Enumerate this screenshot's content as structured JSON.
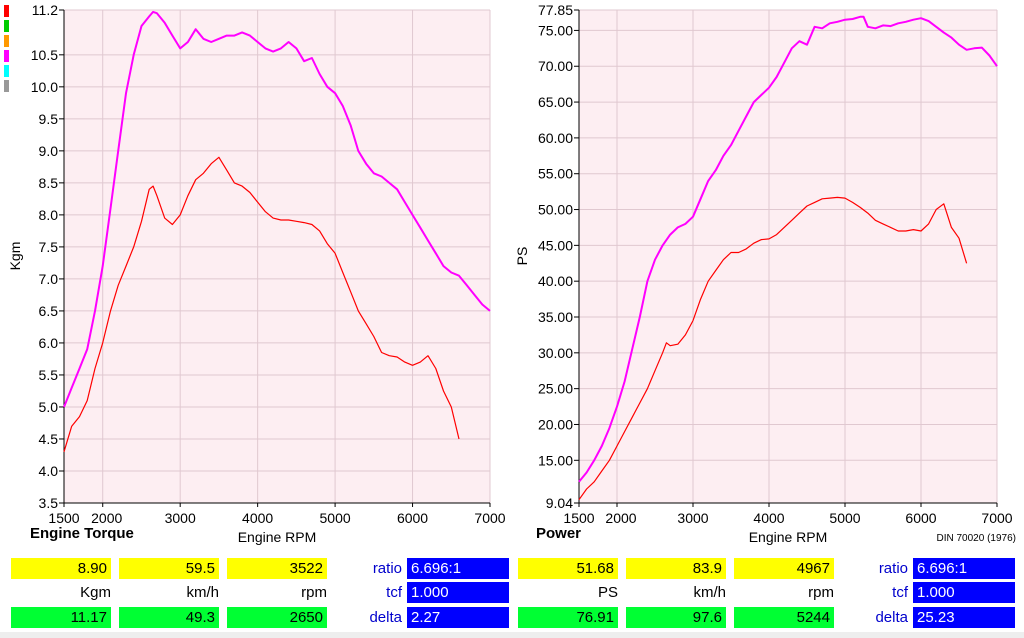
{
  "legend_colors": [
    "#ff0000",
    "#00cc00",
    "#ff9900",
    "#ff00ff",
    "#00ffff",
    "#999999"
  ],
  "chart_data": [
    {
      "type": "line",
      "title": "Engine Torque",
      "xlabel": "Engine RPM",
      "ylabel": "Kgm",
      "xlim": [
        1500,
        7000
      ],
      "ylim": [
        3.5,
        11.2
      ],
      "xticks": [
        1500,
        2000,
        3000,
        4000,
        5000,
        6000,
        7000
      ],
      "yticks": [
        "3.5",
        "4.0",
        "4.5",
        "5.0",
        "5.5",
        "6.0",
        "6.5",
        "7.0",
        "7.5",
        "8.0",
        "8.5",
        "9.0",
        "9.5",
        "10.0",
        "10.5",
        "11.2"
      ],
      "grid": true,
      "series": [
        {
          "color": "#ff00ff",
          "x": [
            1500,
            1600,
            1700,
            1800,
            1900,
            2000,
            2100,
            2200,
            2300,
            2400,
            2500,
            2600,
            2650,
            2700,
            2800,
            2900,
            3000,
            3100,
            3200,
            3300,
            3400,
            3500,
            3600,
            3700,
            3800,
            3900,
            4000,
            4100,
            4200,
            4300,
            4400,
            4500,
            4600,
            4700,
            4800,
            4900,
            5000,
            5100,
            5200,
            5300,
            5400,
            5500,
            5600,
            5700,
            5800,
            5900,
            6000,
            6100,
            6200,
            6300,
            6400,
            6500,
            6600,
            6700,
            6800,
            6900,
            7000
          ],
          "y": [
            5.0,
            5.3,
            5.6,
            5.9,
            6.5,
            7.2,
            8.1,
            9.0,
            9.9,
            10.5,
            10.95,
            11.1,
            11.17,
            11.15,
            11.0,
            10.8,
            10.6,
            10.7,
            10.9,
            10.75,
            10.7,
            10.75,
            10.8,
            10.8,
            10.85,
            10.8,
            10.7,
            10.6,
            10.55,
            10.6,
            10.7,
            10.6,
            10.4,
            10.45,
            10.2,
            10.0,
            9.9,
            9.7,
            9.4,
            9.0,
            8.8,
            8.65,
            8.6,
            8.5,
            8.4,
            8.2,
            8.0,
            7.8,
            7.6,
            7.4,
            7.2,
            7.1,
            7.05,
            6.9,
            6.75,
            6.6,
            6.5
          ]
        },
        {
          "color": "#ff0000",
          "x": [
            1500,
            1600,
            1700,
            1800,
            1900,
            2000,
            2100,
            2200,
            2300,
            2400,
            2500,
            2600,
            2650,
            2700,
            2800,
            2900,
            3000,
            3100,
            3200,
            3300,
            3400,
            3500,
            3600,
            3700,
            3800,
            3900,
            4000,
            4100,
            4200,
            4300,
            4400,
            4500,
            4600,
            4700,
            4800,
            4900,
            5000,
            5100,
            5200,
            5300,
            5400,
            5500,
            5600,
            5700,
            5800,
            5900,
            6000,
            6100,
            6200,
            6300,
            6400,
            6500,
            6600
          ],
          "y": [
            4.3,
            4.7,
            4.85,
            5.1,
            5.6,
            6.0,
            6.5,
            6.9,
            7.2,
            7.5,
            7.9,
            8.4,
            8.45,
            8.3,
            7.95,
            7.85,
            8.0,
            8.3,
            8.55,
            8.65,
            8.8,
            8.9,
            8.7,
            8.5,
            8.45,
            8.35,
            8.2,
            8.05,
            7.95,
            7.92,
            7.92,
            7.9,
            7.88,
            7.85,
            7.75,
            7.55,
            7.4,
            7.1,
            6.8,
            6.5,
            6.3,
            6.1,
            5.85,
            5.8,
            5.78,
            5.7,
            5.65,
            5.7,
            5.8,
            5.6,
            5.25,
            5.0,
            4.5
          ]
        }
      ]
    },
    {
      "type": "line",
      "title": "Power",
      "xlabel": "Engine RPM",
      "ylabel": "PS",
      "note": "DIN 70020 (1976)",
      "xlim": [
        1500,
        7000
      ],
      "ylim": [
        9.04,
        77.85
      ],
      "xticks": [
        1500,
        2000,
        3000,
        4000,
        5000,
        6000,
        7000
      ],
      "yticks": [
        "9.04",
        "15.00",
        "20.00",
        "25.00",
        "30.00",
        "35.00",
        "40.00",
        "45.00",
        "50.00",
        "55.00",
        "60.00",
        "65.00",
        "70.00",
        "75.00",
        "77.85"
      ],
      "grid": true,
      "series": [
        {
          "color": "#ff00ff",
          "x": [
            1500,
            1600,
            1700,
            1800,
            1900,
            2000,
            2100,
            2200,
            2300,
            2400,
            2500,
            2600,
            2700,
            2800,
            2900,
            3000,
            3100,
            3200,
            3300,
            3400,
            3500,
            3600,
            3700,
            3800,
            3900,
            4000,
            4100,
            4200,
            4300,
            4400,
            4500,
            4600,
            4700,
            4800,
            4900,
            5000,
            5100,
            5200,
            5244,
            5300,
            5400,
            5500,
            5600,
            5700,
            5800,
            5900,
            6000,
            6100,
            6200,
            6300,
            6400,
            6500,
            6600,
            6700,
            6800,
            6900,
            7000
          ],
          "y": [
            12.0,
            13.3,
            15.0,
            17.0,
            19.5,
            22.5,
            26.0,
            30.5,
            35.0,
            40.0,
            43.0,
            45.0,
            46.5,
            47.5,
            48.0,
            49.0,
            51.5,
            54.0,
            55.5,
            57.5,
            59.0,
            61.0,
            63.0,
            65.0,
            66.0,
            67.0,
            68.5,
            70.5,
            72.5,
            73.5,
            73.0,
            75.5,
            75.3,
            76.0,
            76.2,
            76.5,
            76.6,
            76.9,
            76.91,
            75.5,
            75.3,
            75.7,
            75.6,
            76.0,
            76.2,
            76.5,
            76.7,
            76.3,
            75.5,
            74.7,
            74.0,
            73.0,
            72.3,
            72.5,
            72.6,
            71.5,
            70.0
          ]
        },
        {
          "color": "#ff0000",
          "x": [
            1500,
            1600,
            1700,
            1800,
            1900,
            2000,
            2100,
            2200,
            2300,
            2400,
            2500,
            2600,
            2650,
            2700,
            2800,
            2900,
            3000,
            3100,
            3200,
            3300,
            3400,
            3500,
            3600,
            3700,
            3800,
            3900,
            4000,
            4100,
            4200,
            4300,
            4400,
            4500,
            4600,
            4700,
            4800,
            4900,
            5000,
            5100,
            5200,
            5300,
            5400,
            5500,
            5600,
            5700,
            5800,
            5900,
            6000,
            6100,
            6200,
            6300,
            6400,
            6500,
            6600
          ],
          "y": [
            9.5,
            11.0,
            12.0,
            13.5,
            15.0,
            17.0,
            19.0,
            21.0,
            23.0,
            25.0,
            27.5,
            30.0,
            31.4,
            31.0,
            31.2,
            32.5,
            34.5,
            37.5,
            40.0,
            41.5,
            43.0,
            44.0,
            44.0,
            44.5,
            45.3,
            45.8,
            45.9,
            46.5,
            47.5,
            48.5,
            49.5,
            50.5,
            51.0,
            51.5,
            51.6,
            51.7,
            51.6,
            51.0,
            50.3,
            49.5,
            48.5,
            48.0,
            47.5,
            47.0,
            47.0,
            47.2,
            47.0,
            48.0,
            50.0,
            50.8,
            47.5,
            46.0,
            42.5
          ]
        }
      ]
    }
  ],
  "readouts": {
    "left": {
      "row1": [
        "8.90",
        "59.5",
        "3522"
      ],
      "units": [
        "Kgm",
        "km/h",
        "rpm"
      ],
      "row3": [
        "11.17",
        "49.3",
        "2650"
      ]
    },
    "right": {
      "row1": [
        "51.68",
        "83.9",
        "4967"
      ],
      "units": [
        "PS",
        "km/h",
        "rpm"
      ],
      "row3": [
        "76.91",
        "97.6",
        "5244"
      ]
    },
    "params_left": [
      {
        "label": "ratio",
        "value": "6.696:1"
      },
      {
        "label": "tcf",
        "value": "1.000"
      },
      {
        "label": "delta",
        "value": "2.27"
      }
    ],
    "params_right": [
      {
        "label": "ratio",
        "value": "6.696:1"
      },
      {
        "label": "tcf",
        "value": "1.000"
      },
      {
        "label": "delta",
        "value": "25.23"
      }
    ]
  }
}
